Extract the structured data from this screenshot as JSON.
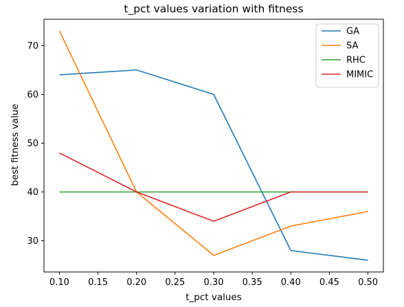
{
  "chart_data": {
    "type": "line",
    "title": "t_pct values variation with fitness",
    "xlabel": "t_pct values",
    "ylabel": "best fitness value",
    "x": [
      0.1,
      0.2,
      0.3,
      0.4,
      0.5
    ],
    "xticks": [
      "0.10",
      "0.15",
      "0.20",
      "0.25",
      "0.30",
      "0.35",
      "0.40",
      "0.45",
      "0.50"
    ],
    "yticks": [
      "30",
      "40",
      "50",
      "60",
      "70"
    ],
    "xlim": [
      0.08,
      0.52
    ],
    "ylim": [
      23.6,
      75.4
    ],
    "grid": false,
    "legend_position": "top-right",
    "series": [
      {
        "name": "GA",
        "color": "#1f77b4",
        "values": [
          64,
          65,
          60,
          28,
          26
        ]
      },
      {
        "name": "SA",
        "color": "#ff7f0e",
        "values": [
          73,
          40,
          27,
          33,
          36
        ]
      },
      {
        "name": "RHC",
        "color": "#2ca02c",
        "values": [
          40,
          40,
          40,
          40,
          40
        ]
      },
      {
        "name": "MIMIC",
        "color": "#d62728",
        "values": [
          48,
          40,
          34,
          40,
          40
        ]
      }
    ]
  }
}
